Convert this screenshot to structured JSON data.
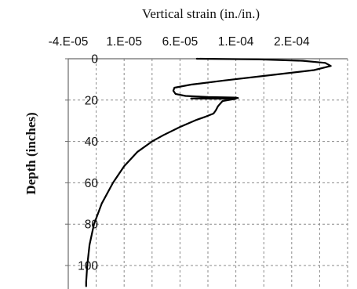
{
  "chart_data": {
    "type": "line",
    "title": "Vertical strain (in./in.)",
    "xlabel": "Vertical strain (in./in.)",
    "ylabel": "Depth (inches)",
    "x_tick_labels": [
      "-4.E-05",
      "1.E-05",
      "6.E-05",
      "1.E-04",
      "2.E-04"
    ],
    "y_tick_labels": [
      "0",
      "20",
      "40",
      "60",
      "80",
      "100"
    ],
    "x_ticks": [
      -4e-05,
      -1.5e-05,
      1e-05,
      3.5e-05,
      6e-05,
      8.5e-05,
      0.00011,
      0.000135,
      0.00016,
      0.000185,
      0.00021
    ],
    "y_ticks": [
      0,
      20,
      40,
      60,
      80,
      100
    ],
    "xlim": [
      -4e-05,
      0.00021
    ],
    "ylim": [
      0,
      110
    ],
    "y_axis_inverted": true,
    "axis_position": "top",
    "grid": true,
    "grid_style": "dashed",
    "series": [
      {
        "line_color": "#000000",
        "points": [
          [
            7.5e-05,
            0
          ],
          [
            0.00013,
            0.3
          ],
          [
            0.00017,
            1.0
          ],
          [
            0.00019,
            2.0
          ],
          [
            0.000195,
            3.5
          ],
          [
            0.00018,
            5.5
          ],
          [
            0.00014,
            8.0
          ],
          [
            0.0001,
            10.5
          ],
          [
            7e-05,
            12.5
          ],
          [
            5.5e-05,
            14.0
          ],
          [
            5.4e-05,
            15.5
          ],
          [
            5.6e-05,
            17.0
          ],
          [
            6.5e-05,
            18.0
          ],
          [
            8.5e-05,
            18.5
          ],
          [
            0.00011,
            18.8
          ],
          [
            0.000112,
            19.0
          ],
          [
            7e-05,
            19.2
          ],
          [
            0.00011,
            19.4
          ],
          [
            9.8e-05,
            20.5
          ],
          [
            9.4e-05,
            23.0
          ],
          [
            9.2e-05,
            25.0
          ],
          [
            9e-05,
            26.5
          ],
          [
            8.3e-05,
            28.0
          ],
          [
            7.5e-05,
            29.5
          ],
          [
            6e-05,
            33.0
          ],
          [
            4.5e-05,
            37.0
          ],
          [
            3.5e-05,
            40.0
          ],
          [
            2.2e-05,
            45.0
          ],
          [
            1e-05,
            52.0
          ],
          [
            0.0,
            60.0
          ],
          [
            -1e-05,
            70.0
          ],
          [
            -1.7e-05,
            80.0
          ],
          [
            -2.1e-05,
            90.0
          ],
          [
            -2.3e-05,
            100.0
          ],
          [
            -2.4e-05,
            108.0
          ],
          [
            -2.4e-05,
            110.0
          ]
        ]
      }
    ]
  }
}
